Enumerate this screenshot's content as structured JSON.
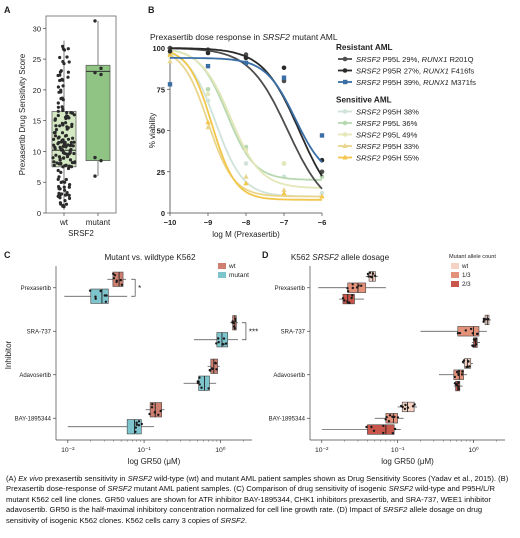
{
  "figure": {
    "panel_letters": [
      "A",
      "B",
      "C",
      "D"
    ],
    "caption": [
      {
        "text": "(A) "
      },
      {
        "text": "Ex vivo",
        "italic": true
      },
      {
        "text": " prexasertib sensitivity in "
      },
      {
        "text": "SRSF2",
        "italic": true
      },
      {
        "text": " wild-type (wt) and mutant AML patient samples shown as Drug Sensitivity Scores (Yadav et al., 2015). (B) Prexasertib dose-response of "
      },
      {
        "text": "SRSF2",
        "italic": true
      },
      {
        "text": " mutant AML patient samples. (C) Comparison of drug sensitivity of isogenic "
      },
      {
        "text": "SRSF2",
        "italic": true
      },
      {
        "text": " wild-type and P95H/L/R mutant K562 cell line clones. GR50 values are shown for ATR inhibitor BAY-1895344, CHK1 inhibitors prexasertib, and SRA-737, WEE1 inhibitor adavosertib. GR50 is the half-maximal inhibitory concentration normalized for cell line growth rate. (D) Impact of "
      },
      {
        "text": "SRSF2",
        "italic": true
      },
      {
        "text": " allele dosage on drug sensitivity of isogenic K562 clones. K562 cells carry 3 copies of "
      },
      {
        "text": "SRSF2",
        "italic": true
      },
      {
        "text": "."
      }
    ]
  },
  "chart_data": [
    {
      "panel": "A",
      "type": "box",
      "ylabel": "Prexasertib Drug Sensitivity Score",
      "xlabel": "SRSF2",
      "ylim": [
        0,
        32
      ],
      "yticks": [
        0,
        5,
        10,
        15,
        20,
        25,
        30
      ],
      "categories": [
        "wt",
        "mutant"
      ],
      "colors": [
        "#d4e8c4",
        "#8fc484"
      ],
      "boxes": [
        {
          "q1": 7.5,
          "median": 10.2,
          "q3": 16.5,
          "whisker_low": 0.5,
          "whisker_high": 28
        },
        {
          "q1": 8.5,
          "median": 23,
          "q3": 24,
          "whisker_low": 6,
          "whisker_high": 31.2
        }
      ],
      "points_mutant": [
        31.2,
        23.5,
        22.8,
        22.5,
        9.0,
        8.5,
        6.0
      ],
      "n_wt_points": 160
    },
    {
      "panel": "B",
      "type": "line",
      "title_parts": [
        "Prexasertib dose response in ",
        "SRSF2",
        " mutant AML"
      ],
      "xlabel": "log M (Prexasertib)",
      "ylabel": "% viability",
      "xlim": [
        -10,
        -6
      ],
      "ylim": [
        0,
        100
      ],
      "xticks": [
        -10,
        -9,
        -8,
        -7,
        -6
      ],
      "yticks": [
        0,
        25,
        50,
        75,
        100
      ],
      "groups": [
        {
          "name": "Resistant AML",
          "series": [
            {
              "gene": "SRSF2",
              "label": " P95L 29%, ",
              "gene2": "RUNX1",
              "label2": " R201Q",
              "color": "#4d4d4d",
              "marker": "circle",
              "top": 100,
              "bottom": 0,
              "log_ic50": -6.9,
              "hill": 0.85,
              "points": [
                [
                  -10,
                  100
                ],
                [
                  -9,
                  99
                ],
                [
                  -8,
                  96
                ],
                [
                  -7,
                  80
                ],
                [
                  -6,
                  25
                ]
              ]
            },
            {
              "gene": "SRSF2",
              "label": " P95R 27%, ",
              "gene2": "RUNX1",
              "label2": " F416fs",
              "color": "#2a2a2a",
              "marker": "circle",
              "top": 100,
              "bottom": 0,
              "log_ic50": -6.6,
              "hill": 0.9,
              "points": [
                [
                  -10,
                  98
                ],
                [
                  -9,
                  97
                ],
                [
                  -8,
                  94
                ],
                [
                  -7,
                  88
                ],
                [
                  -6,
                  32
                ]
              ]
            },
            {
              "gene": "SRSF2",
              "label": " P95H 39%, ",
              "gene2": "RUNX1",
              "label2": " M371fs",
              "color": "#3a6fa6",
              "marker": "square",
              "top": 94,
              "bottom": 20,
              "log_ic50": -6.7,
              "hill": 1.1,
              "points": [
                [
                  -10,
                  78
                ],
                [
                  -9,
                  89
                ],
                [
                  -8,
                  91
                ],
                [
                  -7,
                  82
                ],
                [
                  -6,
                  47
                ]
              ]
            }
          ]
        },
        {
          "name": "Sensitive AML",
          "series": [
            {
              "gene": "SRSF2",
              "label": " P95H 38%",
              "color": "#cfe3d9",
              "marker": "circle",
              "top": 100,
              "bottom": 10,
              "log_ic50": -8.8,
              "hill": 1.2,
              "points": [
                [
                  -10,
                  98
                ],
                [
                  -9,
                  68
                ],
                [
                  -8,
                  30
                ],
                [
                  -7,
                  22
                ],
                [
                  -6,
                  12
                ]
              ]
            },
            {
              "gene": "SRSF2",
              "label": " P95L 36%",
              "color": "#b7d8b0",
              "marker": "circle",
              "top": 100,
              "bottom": 20,
              "log_ic50": -8.5,
              "hill": 1.2,
              "points": [
                [
                  -10,
                  96
                ],
                [
                  -9,
                  75
                ],
                [
                  -8,
                  40
                ],
                [
                  -7,
                  30
                ],
                [
                  -6,
                  22
                ]
              ]
            },
            {
              "gene": "SRSF2",
              "label": " P95L 49%",
              "color": "#e4e7b8",
              "marker": "circle",
              "top": 100,
              "bottom": 15,
              "log_ic50": -8.4,
              "hill": 1.1,
              "points": [
                [
                  -10,
                  95
                ],
                [
                  -9,
                  72
                ],
                [
                  -8,
                  38
                ],
                [
                  -7,
                  30
                ],
                [
                  -6,
                  25
                ]
              ]
            },
            {
              "gene": "SRSF2",
              "label": " P95H 33%",
              "color": "#ead58c",
              "marker": "triangle",
              "top": 100,
              "bottom": 10,
              "log_ic50": -9.0,
              "hill": 1.3,
              "points": [
                [
                  -10,
                  92
                ],
                [
                  -9,
                  52
                ],
                [
                  -8,
                  22
                ],
                [
                  -7,
                  14
                ],
                [
                  -6,
                  10
                ]
              ]
            },
            {
              "gene": "SRSF2",
              "label": " P95H 55%",
              "color": "#f2c64a",
              "marker": "triangle",
              "top": 100,
              "bottom": 8,
              "log_ic50": -8.9,
              "hill": 1.4,
              "points": [
                [
                  -10,
                  96
                ],
                [
                  -9,
                  55
                ],
                [
                  -8,
                  18
                ],
                [
                  -7,
                  12
                ],
                [
                  -6,
                  10
                ]
              ]
            }
          ]
        }
      ]
    },
    {
      "panel": "C",
      "type": "box-horizontal",
      "title": "Mutant vs. wildtype K562",
      "xlabel": "log GR50 (μM)",
      "ylabel": "Inhibitor",
      "xscale": "log",
      "xlim": [
        0.007,
        2.6
      ],
      "xticks": [
        {
          "v": 0.01,
          "label": "10⁻²"
        },
        {
          "v": 0.1,
          "label": "10⁻¹"
        },
        {
          "v": 1,
          "label": "10⁰"
        }
      ],
      "categories": [
        "Prexasertib",
        "SRA-737",
        "Adavosertib",
        "BAY-1895344"
      ],
      "legend": [
        {
          "label": "wt",
          "color": "#cf7f70"
        },
        {
          "label": "mutant",
          "color": "#7ec4cc"
        }
      ],
      "significance": [
        {
          "category": "Prexasertib",
          "label": "*"
        },
        {
          "category": "SRA-737",
          "label": "***"
        }
      ],
      "boxes": [
        {
          "category": "Prexasertib",
          "group": "wt",
          "wl": 0.033,
          "q1": 0.039,
          "med": 0.047,
          "q3": 0.053,
          "wh": 0.058
        },
        {
          "category": "Prexasertib",
          "group": "mutant",
          "wl": 0.009,
          "q1": 0.02,
          "med": 0.028,
          "q3": 0.034,
          "wh": 0.06
        },
        {
          "category": "SRA-737",
          "group": "wt",
          "wl": 1.35,
          "q1": 1.45,
          "med": 1.55,
          "q3": 1.62,
          "wh": 1.7
        },
        {
          "category": "SRA-737",
          "group": "mutant",
          "wl": 0.45,
          "q1": 0.9,
          "med": 1.05,
          "q3": 1.25,
          "wh": 1.7
        },
        {
          "category": "Adavosertib",
          "group": "wt",
          "wl": 0.68,
          "q1": 0.75,
          "med": 0.82,
          "q3": 0.92,
          "wh": 0.98
        },
        {
          "category": "Adavosertib",
          "group": "mutant",
          "wl": 0.33,
          "q1": 0.52,
          "med": 0.62,
          "q3": 0.72,
          "wh": 0.88
        },
        {
          "category": "BAY-1895344",
          "group": "wt",
          "wl": 0.105,
          "q1": 0.12,
          "med": 0.14,
          "q3": 0.17,
          "wh": 0.185
        },
        {
          "category": "BAY-1895344",
          "group": "mutant",
          "wl": 0.01,
          "q1": 0.06,
          "med": 0.075,
          "q3": 0.092,
          "wh": 0.135
        }
      ]
    },
    {
      "panel": "D",
      "type": "box-horizontal",
      "title_parts": [
        "K562 ",
        "SRSF2",
        " allele dosage"
      ],
      "xlabel": "log GR50 (μM)",
      "xscale": "log",
      "xlim": [
        0.007,
        2.6
      ],
      "xticks": [
        {
          "v": 0.01,
          "label": "10⁻²"
        },
        {
          "v": 0.1,
          "label": "10⁻¹"
        },
        {
          "v": 1,
          "label": "10⁰"
        }
      ],
      "categories": [
        "Prexasertib",
        "SRA-737",
        "Adavosertib",
        "BAY-1895344"
      ],
      "legend_title": "Mutant allele count",
      "legend": [
        {
          "label": "wt",
          "color": "#f5d2c4"
        },
        {
          "label": "1/3",
          "color": "#e4917a"
        },
        {
          "label": "2/3",
          "color": "#c9564a"
        }
      ],
      "boxes": [
        {
          "category": "Prexasertib",
          "group": "wt",
          "wl": 0.038,
          "q1": 0.042,
          "med": 0.047,
          "q3": 0.051,
          "wh": 0.055
        },
        {
          "category": "Prexasertib",
          "group": "1/3",
          "wl": 0.009,
          "q1": 0.022,
          "med": 0.03,
          "q3": 0.038,
          "wh": 0.07
        },
        {
          "category": "Prexasertib",
          "group": "2/3",
          "wl": 0.017,
          "q1": 0.019,
          "med": 0.022,
          "q3": 0.027,
          "wh": 0.036
        },
        {
          "category": "SRA-737",
          "group": "wt",
          "wl": 1.35,
          "q1": 1.42,
          "med": 1.52,
          "q3": 1.6,
          "wh": 1.7
        },
        {
          "category": "SRA-737",
          "group": "1/3",
          "wl": 0.2,
          "q1": 0.62,
          "med": 1.0,
          "q3": 1.18,
          "wh": 1.5
        },
        {
          "category": "SRA-737",
          "group": "2/3",
          "wl": 0.95,
          "q1": 1.0,
          "med": 1.06,
          "q3": 1.12,
          "wh": 1.22
        },
        {
          "category": "Adavosertib",
          "group": "wt",
          "wl": 0.72,
          "q1": 0.76,
          "med": 0.83,
          "q3": 0.92,
          "wh": 0.98
        },
        {
          "category": "Adavosertib",
          "group": "1/3",
          "wl": 0.35,
          "q1": 0.55,
          "med": 0.65,
          "q3": 0.74,
          "wh": 0.82
        },
        {
          "category": "Adavosertib",
          "group": "2/3",
          "wl": 0.55,
          "q1": 0.58,
          "med": 0.62,
          "q3": 0.66,
          "wh": 0.72
        },
        {
          "category": "BAY-1895344",
          "group": "wt",
          "wl": 0.1,
          "q1": 0.115,
          "med": 0.135,
          "q3": 0.165,
          "wh": 0.18
        },
        {
          "category": "BAY-1895344",
          "group": "1/3",
          "wl": 0.05,
          "q1": 0.07,
          "med": 0.088,
          "q3": 0.1,
          "wh": 0.12
        },
        {
          "category": "BAY-1895344",
          "group": "2/3",
          "wl": 0.01,
          "q1": 0.04,
          "med": 0.07,
          "q3": 0.09,
          "wh": 0.11
        }
      ]
    }
  ]
}
